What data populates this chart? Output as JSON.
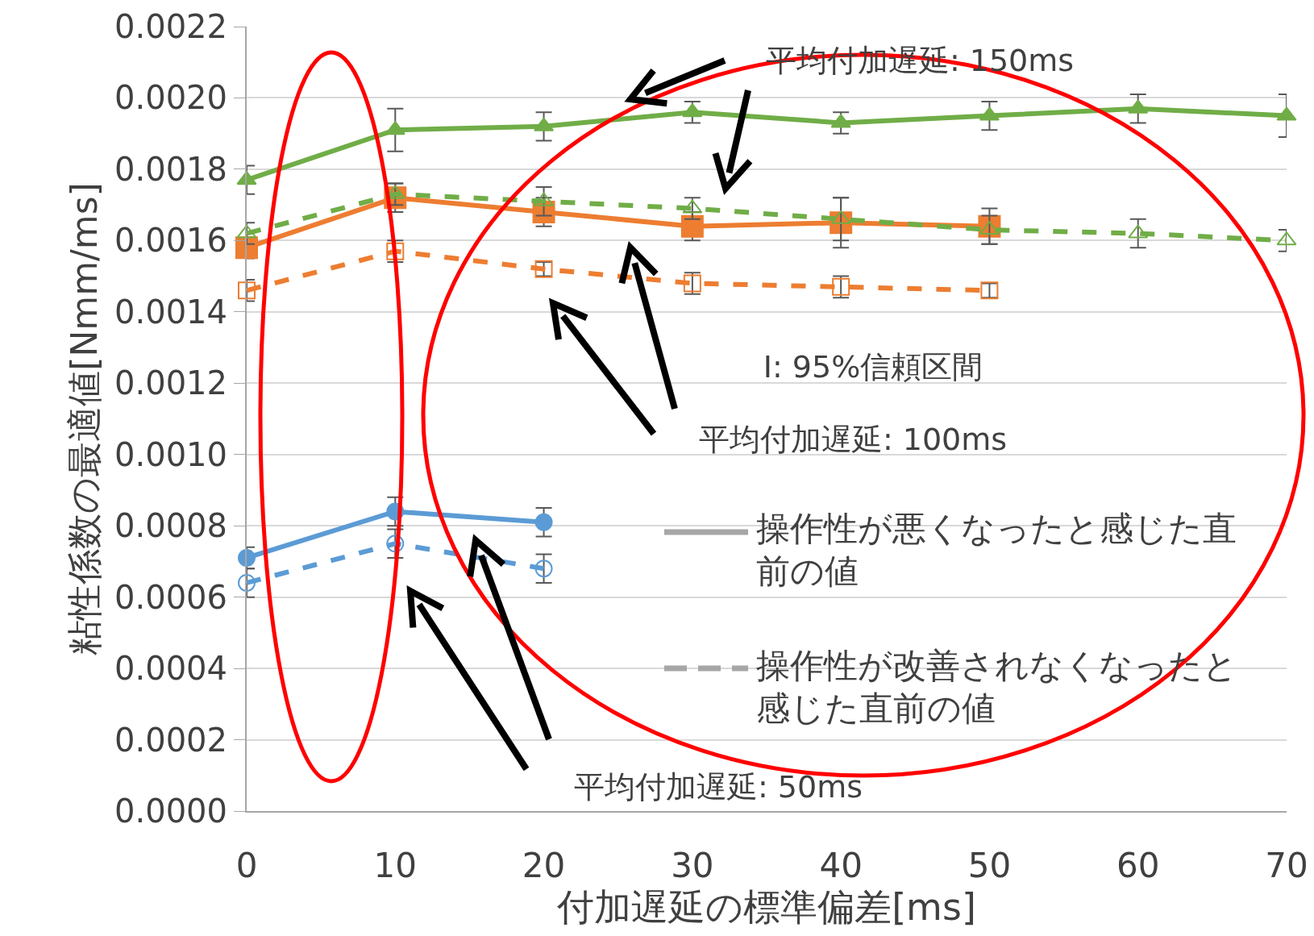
{
  "chart_data": {
    "type": "line",
    "xlabel": "付加遅延の標準偏差[ms]",
    "ylabel": "粘性係数の最適値[Nmm/ms]",
    "x": [
      0,
      10,
      20,
      30,
      40,
      50,
      60,
      70
    ],
    "series": [
      {
        "color": "#70ad47",
        "marker": "triangle",
        "line_style": "solid",
        "values": [
          0.00177,
          0.00191,
          0.00192,
          0.00196,
          0.00193,
          0.00195,
          0.00197,
          0.00195
        ],
        "errors": [
          4e-05,
          6e-05,
          4e-05,
          3e-05,
          3e-05,
          4e-05,
          4e-05,
          6e-05
        ]
      },
      {
        "color": "#70ad47",
        "marker": "triangle-open",
        "line_style": "dashed",
        "values": [
          0.00162,
          0.00173,
          0.00171,
          0.00169,
          0.00166,
          0.00163,
          0.00162,
          0.0016
        ],
        "errors": [
          3e-05,
          3e-05,
          4e-05,
          3e-05,
          6e-05,
          4e-05,
          4e-05,
          3e-05
        ]
      },
      {
        "color": "#ed7d31",
        "marker": "square",
        "line_style": "solid",
        "x": [
          0,
          10,
          20,
          30,
          40,
          50
        ],
        "values": [
          0.00158,
          0.00172,
          0.00168,
          0.00164,
          0.00165,
          0.00164
        ],
        "errors": [
          3e-05,
          4e-05,
          4e-05,
          4e-05,
          7e-05,
          5e-05
        ]
      },
      {
        "color": "#ed7d31",
        "marker": "square-open",
        "line_style": "dashed",
        "x": [
          0,
          10,
          20,
          30,
          40,
          50
        ],
        "values": [
          0.00146,
          0.00157,
          0.00152,
          0.00148,
          0.00147,
          0.00146
        ],
        "errors": [
          3e-05,
          3e-05,
          2e-05,
          3e-05,
          3e-05,
          2e-05
        ]
      },
      {
        "color": "#5b9bd5",
        "marker": "circle",
        "line_style": "solid",
        "x": [
          0,
          10,
          20
        ],
        "values": [
          0.00071,
          0.00084,
          0.00081
        ],
        "errors": [
          3e-05,
          4e-05,
          4e-05
        ]
      },
      {
        "color": "#5b9bd5",
        "marker": "circle-open",
        "line_style": "dashed",
        "x": [
          0,
          10,
          20
        ],
        "values": [
          0.00064,
          0.00075,
          0.00068
        ],
        "errors": [
          4e-05,
          4e-05,
          4e-05
        ]
      }
    ],
    "xlim": [
      0,
      70
    ],
    "xticks": [
      0,
      10,
      20,
      30,
      40,
      50,
      60,
      70
    ],
    "ylim": [
      0,
      0.0022
    ],
    "yticks": [
      {
        "value": 0,
        "label": "0.0000"
      },
      {
        "value": 0.0002,
        "label": "0.0002"
      },
      {
        "value": 0.0004,
        "label": "0.0004"
      },
      {
        "value": 0.0006,
        "label": "0.0006"
      },
      {
        "value": 0.0008,
        "label": "0.0008"
      },
      {
        "value": 0.001,
        "label": "0.0010"
      },
      {
        "value": 0.0012,
        "label": "0.0012"
      },
      {
        "value": 0.0014,
        "label": "0.0014"
      },
      {
        "value": 0.0016,
        "label": "0.0016"
      },
      {
        "value": 0.0018,
        "label": "0.0018"
      },
      {
        "value": 0.002,
        "label": "0.0020"
      },
      {
        "value": 0.0022,
        "label": "0.0022"
      }
    ],
    "grid": "y",
    "annotations": [
      "平均付加遅延: 150ms",
      "平均付加遅延: 100ms",
      "I: 95%信頼区間",
      "平均付加遅延: 50ms",
      "操作性が悪くなったと感じた直前の値",
      "操作性が改善されなくなったと感じた直前の値"
    ]
  }
}
